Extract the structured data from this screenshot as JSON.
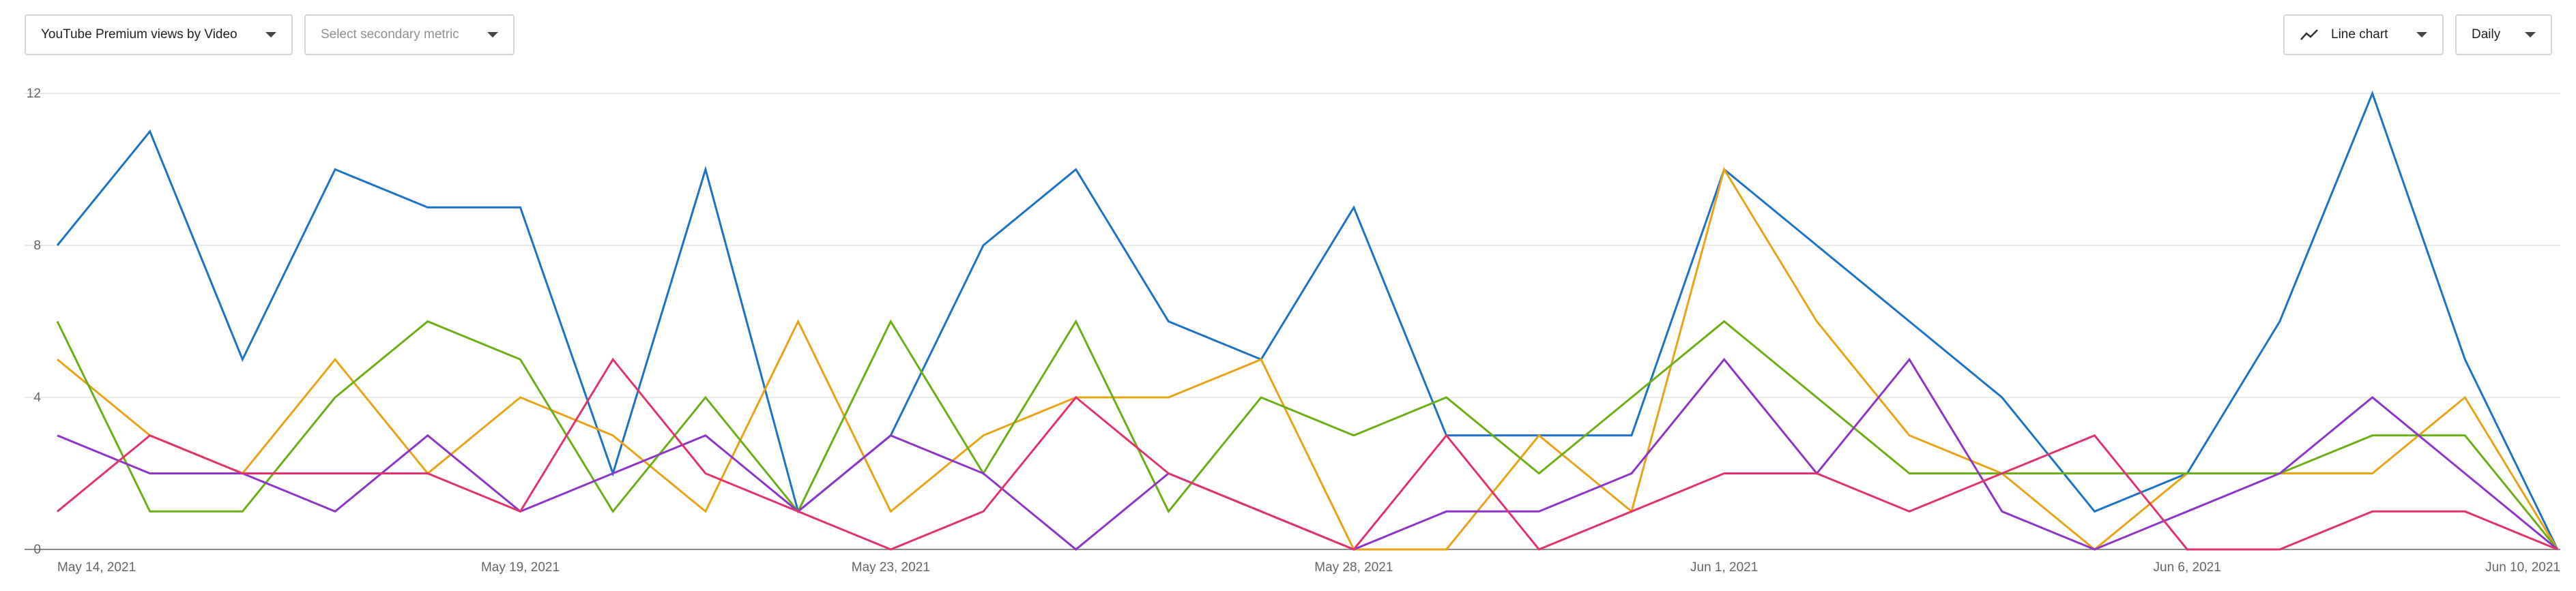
{
  "controls": {
    "primary_metric": "YouTube Premium views by Video",
    "secondary_metric_placeholder": "Select secondary metric",
    "chart_type": "Line chart",
    "chart_type_icon": "line-chart-icon",
    "granularity": "Daily"
  },
  "chart_data": {
    "type": "line",
    "title": "",
    "xlabel": "",
    "ylabel": "",
    "ylim": [
      0,
      12
    ],
    "y_ticks": [
      0,
      4,
      8,
      12
    ],
    "grid": true,
    "x": [
      "May 14, 2021",
      "May 15, 2021",
      "May 16, 2021",
      "May 17, 2021",
      "May 18, 2021",
      "May 19, 2021",
      "May 20, 2021",
      "May 21, 2021",
      "May 22, 2021",
      "May 23, 2021",
      "May 24, 2021",
      "May 25, 2021",
      "May 26, 2021",
      "May 27, 2021",
      "May 28, 2021",
      "May 29, 2021",
      "May 30, 2021",
      "May 31, 2021",
      "Jun 1, 2021",
      "Jun 2, 2021",
      "Jun 3, 2021",
      "Jun 4, 2021",
      "Jun 5, 2021",
      "Jun 6, 2021",
      "Jun 7, 2021",
      "Jun 8, 2021",
      "Jun 9, 2021",
      "Jun 10, 2021"
    ],
    "x_tick_labels": [
      {
        "index": 0,
        "label": "May 14, 2021"
      },
      {
        "index": 5,
        "label": "May 19, 2021"
      },
      {
        "index": 9,
        "label": "May 23, 2021"
      },
      {
        "index": 14,
        "label": "May 28, 2021"
      },
      {
        "index": 18,
        "label": "Jun 1, 2021"
      },
      {
        "index": 23,
        "label": "Jun 6, 2021"
      },
      {
        "index": 27,
        "label": "Jun 10, 2021"
      }
    ],
    "series": [
      {
        "color": "#1a73c8",
        "values": [
          8,
          11,
          5,
          10,
          9,
          9,
          2,
          10,
          1,
          3,
          8,
          10,
          6,
          5,
          9,
          3,
          3,
          3,
          10,
          8,
          6,
          4,
          1,
          2,
          6,
          12,
          5,
          0
        ]
      },
      {
        "color": "#e8a317",
        "values": [
          5,
          3,
          2,
          5,
          2,
          4,
          3,
          1,
          6,
          1,
          3,
          4,
          4,
          5,
          0,
          0,
          3,
          1,
          10,
          6,
          3,
          2,
          0,
          2,
          2,
          2,
          4,
          0
        ]
      },
      {
        "color": "#6bae16",
        "values": [
          6,
          1,
          1,
          4,
          6,
          5,
          1,
          4,
          1,
          6,
          2,
          6,
          1,
          4,
          3,
          4,
          2,
          4,
          6,
          4,
          2,
          2,
          2,
          2,
          2,
          3,
          3,
          0
        ]
      },
      {
        "color": "#8d34c9",
        "values": [
          3,
          2,
          2,
          1,
          3,
          1,
          2,
          3,
          1,
          3,
          2,
          0,
          2,
          1,
          0,
          1,
          1,
          2,
          5,
          2,
          5,
          1,
          0,
          1,
          2,
          4,
          2,
          0
        ]
      },
      {
        "color": "#e0336b",
        "values": [
          1,
          3,
          2,
          2,
          2,
          1,
          5,
          2,
          1,
          0,
          1,
          4,
          2,
          1,
          0,
          3,
          0,
          1,
          2,
          2,
          1,
          2,
          3,
          0,
          0,
          1,
          1,
          0
        ]
      }
    ]
  }
}
